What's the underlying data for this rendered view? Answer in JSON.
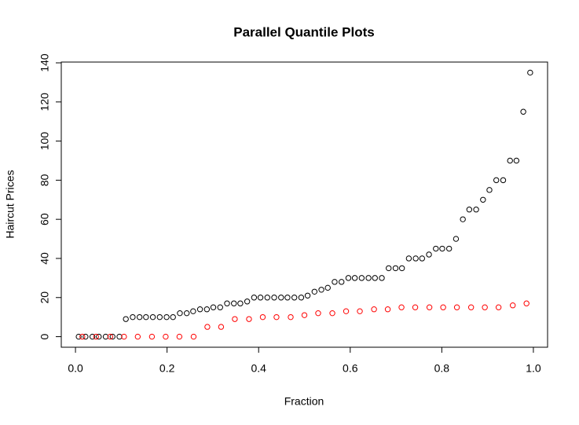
{
  "chart_data": {
    "type": "scatter",
    "title": "Parallel Quantile Plots",
    "x_label": "Fraction",
    "y_label": "Haircut Prices",
    "xlim": [
      -0.031,
      1.031
    ],
    "ylim": [
      -5.4,
      140.4
    ],
    "xticks": [
      {
        "value": 0,
        "label": "0.0"
      },
      0.2,
      0.4,
      0.6,
      0.8,
      {
        "value": 1,
        "label": "1.0"
      }
    ],
    "yticks": [
      0,
      20,
      40,
      60,
      80,
      100,
      120,
      140
    ],
    "grid": false,
    "series": [
      {
        "color": "#000000",
        "x": [
          0.007,
          0.022,
          0.037,
          0.051,
          0.066,
          0.081,
          0.096,
          0.11,
          0.125,
          0.14,
          0.154,
          0.169,
          0.184,
          0.199,
          0.213,
          0.228,
          0.243,
          0.257,
          0.272,
          0.287,
          0.301,
          0.316,
          0.331,
          0.346,
          0.36,
          0.375,
          0.39,
          0.404,
          0.419,
          0.434,
          0.449,
          0.463,
          0.478,
          0.493,
          0.507,
          0.522,
          0.537,
          0.551,
          0.566,
          0.581,
          0.596,
          0.61,
          0.625,
          0.64,
          0.654,
          0.669,
          0.684,
          0.699,
          0.713,
          0.728,
          0.743,
          0.757,
          0.772,
          0.787,
          0.801,
          0.816,
          0.831,
          0.846,
          0.86,
          0.875,
          0.89,
          0.904,
          0.919,
          0.934,
          0.949,
          0.963,
          0.978,
          0.993
        ],
        "values": [
          0,
          0,
          0,
          0,
          0,
          0,
          0,
          9,
          10,
          10,
          10,
          10,
          10,
          10,
          10,
          12,
          12,
          13,
          14,
          14,
          15,
          15,
          17,
          17,
          17,
          18,
          20,
          20,
          20,
          20,
          20,
          20,
          20,
          20,
          21,
          23,
          24,
          25,
          28,
          28,
          30,
          30,
          30,
          30,
          30,
          30,
          35,
          35,
          35,
          40,
          40,
          40,
          42,
          45,
          45,
          45,
          50,
          60,
          65,
          65,
          70,
          75,
          80,
          80,
          90,
          90,
          115,
          135
        ]
      },
      {
        "color": "#ff0000",
        "x": [
          0.015,
          0.045,
          0.076,
          0.106,
          0.136,
          0.167,
          0.197,
          0.227,
          0.258,
          0.288,
          0.318,
          0.348,
          0.379,
          0.409,
          0.439,
          0.47,
          0.5,
          0.53,
          0.561,
          0.591,
          0.621,
          0.652,
          0.682,
          0.712,
          0.742,
          0.773,
          0.803,
          0.833,
          0.864,
          0.894,
          0.924,
          0.955,
          0.985
        ],
        "values": [
          0,
          0,
          0,
          0,
          0,
          0,
          0,
          0,
          0,
          5,
          5,
          9,
          9,
          10,
          10,
          10,
          11,
          12,
          12,
          13,
          13,
          14,
          14,
          15,
          15,
          15,
          15,
          15,
          15,
          15,
          15,
          16,
          17
        ]
      }
    ]
  }
}
